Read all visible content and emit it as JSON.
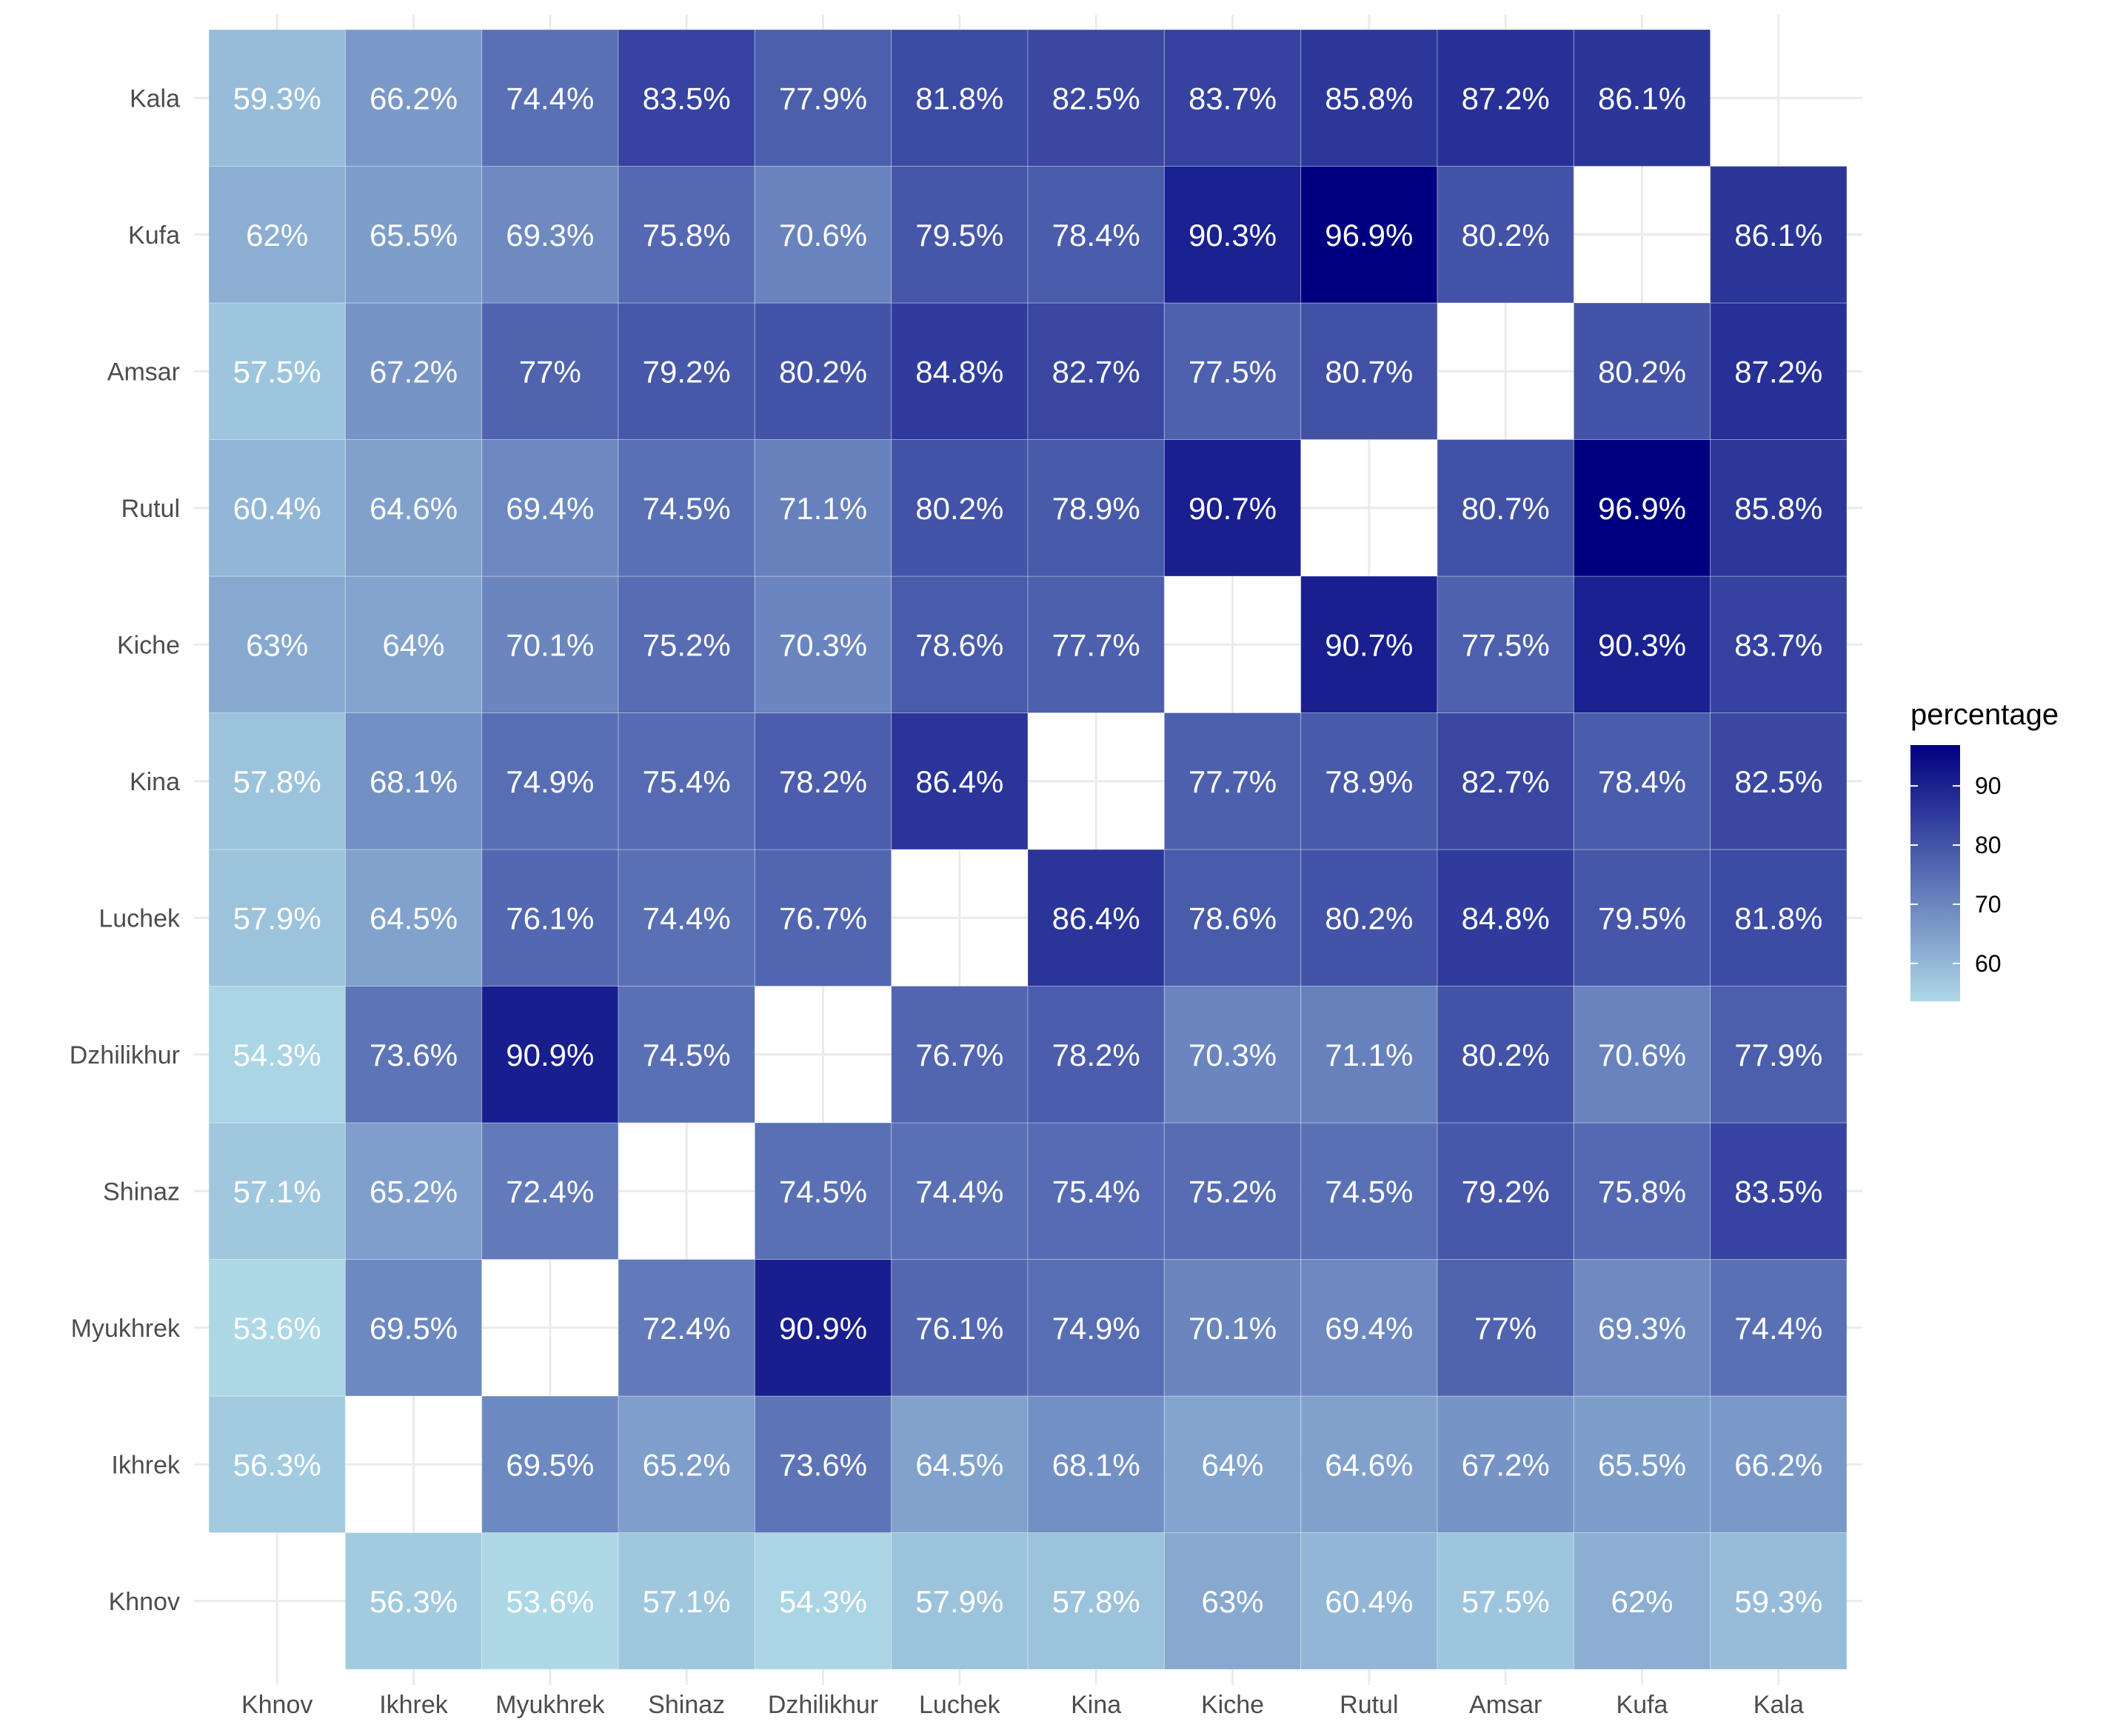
{
  "chart_data": {
    "type": "heatmap",
    "x_categories": [
      "Khnov",
      "Ikhrek",
      "Myukhrek",
      "Shinaz",
      "Dzhilikhur",
      "Luchek",
      "Kina",
      "Kiche",
      "Rutul",
      "Amsar",
      "Kufa",
      "Kala"
    ],
    "y_categories": [
      "Khnov",
      "Ikhrek",
      "Myukhrek",
      "Shinaz",
      "Dzhilikhur",
      "Luchek",
      "Kina",
      "Kiche",
      "Rutul",
      "Amsar",
      "Kufa",
      "Kala"
    ],
    "values": [
      [
        null,
        56.3,
        53.6,
        57.1,
        54.3,
        57.9,
        57.8,
        63,
        60.4,
        57.5,
        62,
        59.3
      ],
      [
        56.3,
        null,
        69.5,
        65.2,
        73.6,
        64.5,
        68.1,
        64,
        64.6,
        67.2,
        65.5,
        66.2
      ],
      [
        53.6,
        69.5,
        null,
        72.4,
        90.9,
        76.1,
        74.9,
        70.1,
        69.4,
        77,
        69.3,
        74.4
      ],
      [
        57.1,
        65.2,
        72.4,
        null,
        74.5,
        74.4,
        75.4,
        75.2,
        74.5,
        79.2,
        75.8,
        83.5
      ],
      [
        54.3,
        73.6,
        90.9,
        74.5,
        null,
        76.7,
        78.2,
        70.3,
        71.1,
        80.2,
        70.6,
        77.9
      ],
      [
        57.9,
        64.5,
        76.1,
        74.4,
        76.7,
        null,
        86.4,
        78.6,
        80.2,
        84.8,
        79.5,
        81.8
      ],
      [
        57.8,
        68.1,
        74.9,
        75.4,
        78.2,
        86.4,
        null,
        77.7,
        78.9,
        82.7,
        78.4,
        82.5
      ],
      [
        63,
        64,
        70.1,
        75.2,
        70.3,
        78.6,
        77.7,
        null,
        90.7,
        77.5,
        90.3,
        83.7
      ],
      [
        60.4,
        64.6,
        69.4,
        74.5,
        71.1,
        80.2,
        78.9,
        90.7,
        null,
        80.7,
        96.9,
        85.8
      ],
      [
        57.5,
        67.2,
        77,
        79.2,
        80.2,
        84.8,
        82.7,
        77.5,
        80.7,
        null,
        80.2,
        87.2
      ],
      [
        62,
        65.5,
        69.3,
        75.8,
        70.6,
        79.5,
        78.4,
        90.3,
        96.9,
        80.2,
        null,
        86.1
      ],
      [
        59.3,
        66.2,
        74.4,
        83.5,
        77.9,
        81.8,
        82.5,
        83.7,
        85.8,
        87.2,
        86.1,
        null
      ]
    ],
    "value_suffix": "%",
    "legend": {
      "title": "percentage",
      "ticks": [
        60,
        70,
        80,
        90
      ],
      "range": [
        53.6,
        96.9
      ],
      "color_low": "#add8e6",
      "color_high": "#000080",
      "placement": "right"
    },
    "grid": true,
    "xlabel": "",
    "ylabel": ""
  }
}
